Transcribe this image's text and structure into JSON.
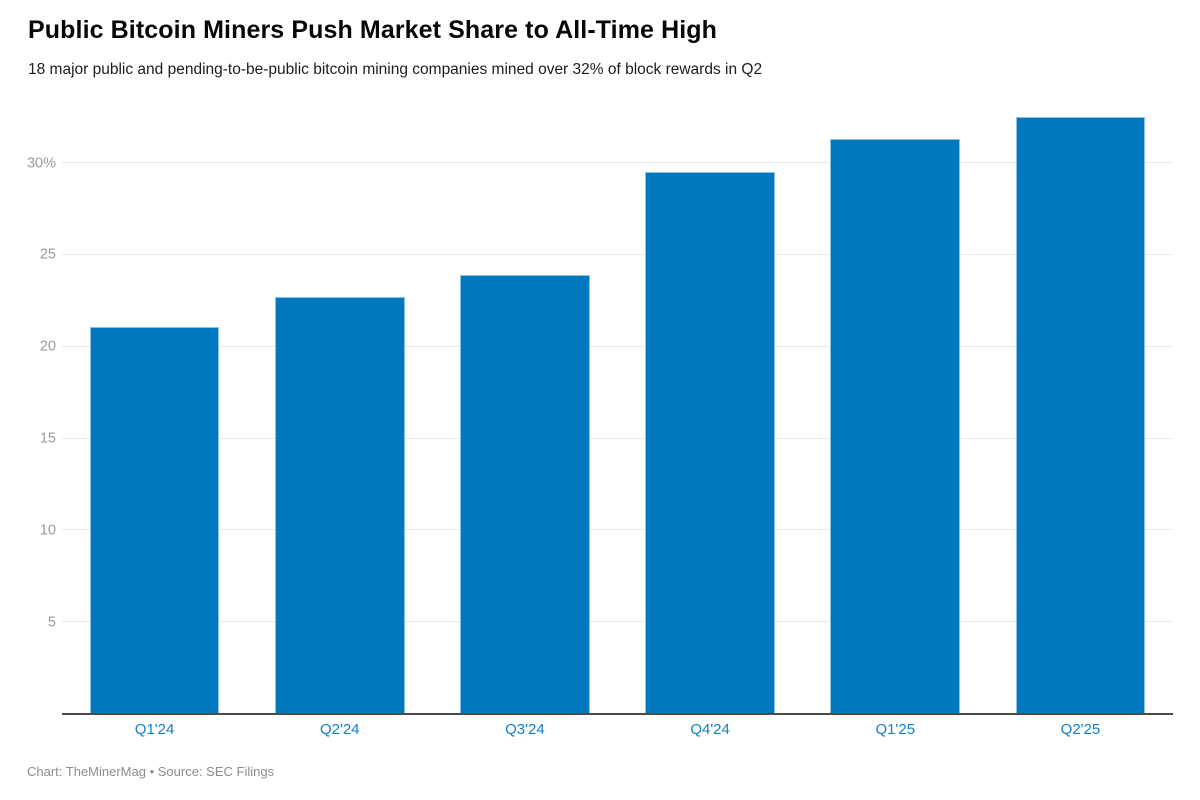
{
  "header": {
    "title": "Public Bitcoin Miners Push Market Share to All-Time High",
    "subtitle": "18 major public and pending-to-be-public bitcoin mining companies mined over 32% of block rewards in Q2"
  },
  "footer": {
    "credit": "Chart: TheMinerMag • Source: SEC Filings"
  },
  "colors": {
    "bar": "#0178bd",
    "x_label": "#1080c6",
    "y_label": "#9b9b9b",
    "grid": "#e7e7e7",
    "axis": "#4a4a4a"
  },
  "chart_data": {
    "type": "bar",
    "title": "Public Bitcoin Miners Push Market Share to All-Time High",
    "subtitle": "18 major public and pending-to-be-public bitcoin mining companies mined over 32% of block rewards in Q2",
    "categories": [
      "Q1'24",
      "Q2'24",
      "Q3'24",
      "Q4'24",
      "Q1'25",
      "Q2'25"
    ],
    "values": [
      21.1,
      22.7,
      23.9,
      29.5,
      31.3,
      32.5
    ],
    "xlabel": "",
    "ylabel": "",
    "ylim": [
      0,
      33
    ],
    "yticks": [
      5,
      10,
      15,
      20,
      25,
      30
    ],
    "ytick_labels": [
      "5",
      "10",
      "15",
      "20",
      "25",
      "30%"
    ],
    "grid": "horizontal",
    "legend": false,
    "credit": "Chart: TheMinerMag • Source: SEC Filings"
  }
}
